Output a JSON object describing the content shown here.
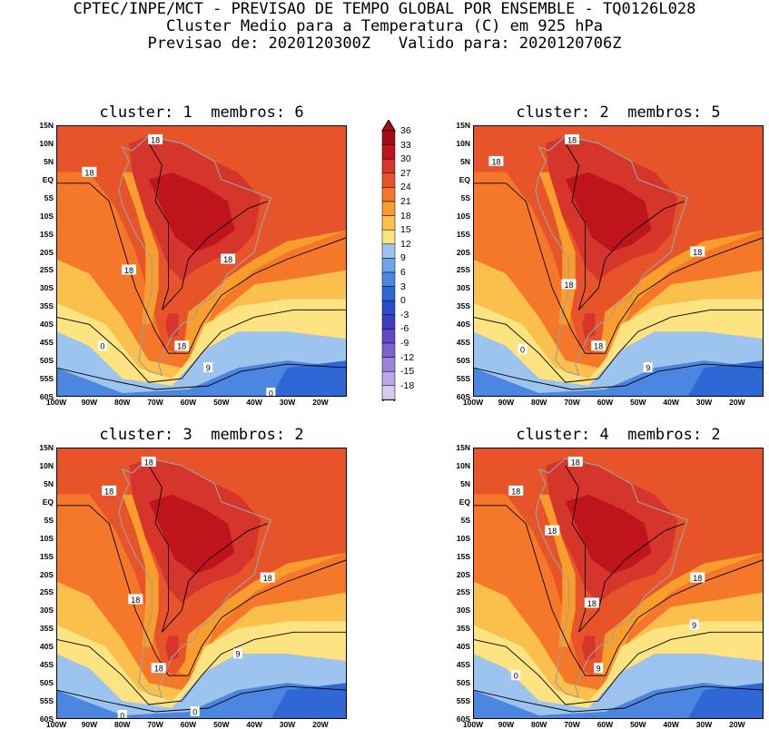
{
  "header": {
    "line1": "CPTEC/INPE/MCT - PREVISAO DE TEMPO GLOBAL POR ENSEMBLE - TQ0126L028",
    "line2": "Cluster Medio para a Temperatura (C) em 925 hPa",
    "line3": "Previsao de: 2020120300Z   Valido para: 2020120706Z"
  },
  "panels": [
    {
      "title": "cluster: 1  membros: 6",
      "labels": [
        "18",
        "18",
        "18",
        "18",
        "18",
        "9",
        "0",
        "0"
      ]
    },
    {
      "title": "cluster: 2  membros: 5",
      "labels": [
        "18",
        "18",
        "18",
        "18",
        "18",
        "9",
        "0"
      ]
    },
    {
      "title": "cluster: 3  membros: 2",
      "labels": [
        "18",
        "18",
        "18",
        "18",
        "18",
        "9",
        "0",
        "0"
      ]
    },
    {
      "title": "cluster: 4  membros: 2",
      "labels": [
        "18",
        "18",
        "18",
        "18",
        "18",
        "9",
        "9",
        "0"
      ]
    }
  ],
  "lat_labels": [
    "15N",
    "10N",
    "5N",
    "EQ",
    "5S",
    "10S",
    "15S",
    "20S",
    "25S",
    "30S",
    "35S",
    "40S",
    "45S",
    "50S",
    "55S",
    "60S"
  ],
  "lon_labels": [
    "100W",
    "90W",
    "80W",
    "70W",
    "60W",
    "50W",
    "40W",
    "30W",
    "20W"
  ],
  "colorbar": {
    "labels": [
      "36",
      "33",
      "30",
      "27",
      "24",
      "21",
      "18",
      "15",
      "12",
      "9",
      "6",
      "3",
      "0",
      "-3",
      "-6",
      "-9",
      "-12",
      "-15",
      "-18"
    ],
    "colors": [
      "#a50d16",
      "#c0141c",
      "#d6352c",
      "#e8542a",
      "#f4772a",
      "#f99d2d",
      "#fbbf4c",
      "#fde382",
      "#9dc4ef",
      "#6fa6e9",
      "#4b86e0",
      "#2f67d5",
      "#2a4cc8",
      "#3c3cbf",
      "#5f49c6",
      "#7e63cf",
      "#9d83da",
      "#bba6e6",
      "#d7c8f0"
    ]
  }
}
